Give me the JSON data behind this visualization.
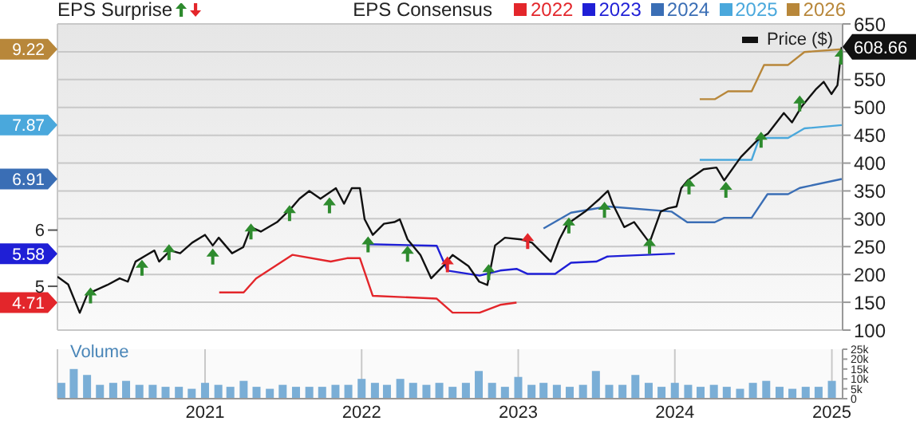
{
  "chart_data": [
    {
      "type": "line",
      "annotations": [
        "EPS Surprise"
      ],
      "legend_title": "EPS Consensus",
      "legend": "top",
      "grid": true,
      "tick_labels": "y",
      "xlim": [
        "2020-01-23",
        "2025-01-26"
      ],
      "xticks": [
        {
          "value": "2021-01-01",
          "label": null
        },
        {
          "value": "2022-01-01",
          "label": null
        },
        {
          "value": "2023-01-01",
          "label": null
        },
        {
          "value": "2024-01-01",
          "label": null
        },
        {
          "value": "2025-01-01",
          "label": null
        }
      ],
      "ylim": [
        4.22,
        9.67
      ],
      "yticks": [
        4.71,
        5,
        5.58,
        6,
        6.91,
        7.87,
        9.22
      ],
      "y2lim": [
        100,
        650
      ],
      "y2ticks": [
        100,
        150,
        200,
        250,
        300,
        350,
        400,
        450,
        500,
        550,
        {
          "value": 600,
          "label": null
        },
        650
      ],
      "series": [
        {
          "name": "2022",
          "color": "#e3262b",
          "x": [
            "2021-02-03",
            "2021-04-01",
            "2021-04-30",
            "2021-07-24",
            "2021-10-21",
            "2021-11-28",
            "2021-12-28",
            "2022-01-27",
            "2022-06-25",
            "2022-08-01",
            "2022-10-03",
            "2022-11-20",
            "2022-12-28"
          ],
          "values": [
            4.89,
            4.89,
            5.14,
            5.56,
            5.44,
            5.5,
            5.5,
            4.83,
            4.78,
            4.53,
            4.53,
            4.67,
            4.71
          ]
        },
        {
          "name": "2023",
          "color": "#1f1fd6",
          "x": [
            "2022-01-16",
            "2022-06-25",
            "2022-07-20",
            "2022-10-03",
            "2022-11-20",
            "2022-12-28",
            "2023-01-23",
            "2023-03-28",
            "2023-05-04",
            "2023-07-02",
            "2023-07-28",
            "2024-01-01"
          ],
          "values": [
            5.75,
            5.72,
            5.28,
            5.19,
            5.28,
            5.31,
            5.22,
            5.22,
            5.42,
            5.44,
            5.53,
            5.58
          ]
        },
        {
          "name": "2024",
          "color": "#3a6eb5",
          "x": [
            "2023-03-01",
            "2023-05-04",
            "2023-07-28",
            "2023-12-24",
            "2024-01-30",
            "2024-04-03",
            "2024-04-25",
            "2024-06-28",
            "2024-08-04",
            "2024-09-21",
            "2024-10-18",
            "2025-01-24"
          ],
          "values": [
            6.03,
            6.31,
            6.42,
            6.33,
            6.14,
            6.14,
            6.22,
            6.22,
            6.64,
            6.64,
            6.75,
            6.91
          ]
        },
        {
          "name": "2025",
          "color": "#4aa8dc",
          "x": [
            "2024-02-28",
            "2024-06-28",
            "2024-07-16",
            "2024-09-21",
            "2024-10-29",
            "2025-01-24"
          ],
          "values": [
            7.25,
            7.25,
            7.64,
            7.64,
            7.81,
            7.87
          ]
        },
        {
          "name": "2026",
          "color": "#b8873a",
          "x": [
            "2024-02-28",
            "2024-04-03",
            "2024-05-04",
            "2024-06-28",
            "2024-07-27",
            "2024-09-21",
            "2024-10-29",
            "2025-01-24"
          ],
          "values": [
            8.33,
            8.33,
            8.47,
            8.47,
            8.94,
            8.94,
            9.17,
            9.22
          ]
        },
        {
          "name": "Price ($)",
          "color": "#111111",
          "axis": "y2",
          "x": [
            "2020-01-23",
            "2020-02-17",
            "2020-03-15",
            "2020-04-02",
            "2020-05-18",
            "2020-06-16",
            "2020-07-05",
            "2020-07-23",
            "2020-08-18",
            "2020-09-05",
            "2020-09-16",
            "2020-10-12",
            "2020-11-04",
            "2020-12-02",
            "2021-01-01",
            "2021-01-19",
            "2021-02-02",
            "2021-03-05",
            "2021-03-31",
            "2021-04-18",
            "2021-05-11",
            "2021-06-18",
            "2021-07-21",
            "2021-08-09",
            "2021-09-01",
            "2021-09-27",
            "2021-11-02",
            "2021-11-21",
            "2021-12-09",
            "2021-12-28",
            "2022-01-08",
            "2022-01-27",
            "2022-02-22",
            "2022-03-18",
            "2022-03-31",
            "2022-04-18",
            "2022-05-18",
            "2022-06-12",
            "2022-07-10",
            "2022-08-01",
            "2022-09-07",
            "2022-10-02",
            "2022-10-21",
            "2022-11-08",
            "2022-12-01",
            "2023-01-07",
            "2023-02-02",
            "2023-03-18",
            "2023-04-07",
            "2023-04-26",
            "2023-06-06",
            "2023-07-10",
            "2023-07-29",
            "2023-08-09",
            "2023-09-05",
            "2023-09-28",
            "2023-11-03",
            "2023-11-29",
            "2023-12-17",
            "2024-01-05",
            "2024-01-16",
            "2024-01-31",
            "2024-03-08",
            "2024-04-07",
            "2024-04-25",
            "2024-06-03",
            "2024-07-10",
            "2024-08-05",
            "2024-08-28",
            "2024-09-11",
            "2024-09-30",
            "2024-10-22",
            "2024-11-24",
            "2024-12-13",
            "2024-12-31",
            "2025-01-14",
            "2025-01-24"
          ],
          "values": [
            196,
            182,
            131,
            165,
            181,
            193,
            187,
            223,
            235,
            243,
            223,
            243,
            238,
            257,
            271,
            252,
            266,
            238,
            249,
            285,
            277,
            294,
            319,
            336,
            350,
            336,
            355,
            327,
            355,
            355,
            299,
            271,
            291,
            294,
            299,
            263,
            235,
            193,
            215,
            235,
            215,
            187,
            181,
            252,
            266,
            263,
            257,
            223,
            263,
            291,
            313,
            336,
            350,
            327,
            285,
            294,
            257,
            313,
            319,
            322,
            355,
            369,
            389,
            392,
            369,
            411,
            440,
            453,
            476,
            490,
            473,
            501,
            532,
            546,
            524,
            540,
            608.66
          ],
          "value_labels": [
            null,
            null,
            null,
            null,
            null,
            null,
            null,
            null,
            null,
            null,
            null,
            null,
            null,
            null,
            null,
            null,
            null,
            null,
            null,
            null,
            null,
            null,
            null,
            null,
            null,
            null,
            null,
            null,
            null,
            null,
            null,
            null,
            null,
            null,
            null,
            null,
            null,
            null,
            null,
            null,
            null,
            null,
            null,
            null,
            null,
            null,
            null,
            null,
            null,
            null,
            null,
            null,
            null,
            null,
            null,
            null,
            null,
            null,
            null,
            null,
            null,
            null,
            null,
            null,
            null,
            null,
            null,
            null,
            null,
            null,
            null,
            null,
            null,
            null,
            null,
            null,
            "608.66"
          ]
        },
        {
          "type": "scatter",
          "color": "#2e8b2e",
          "axis": "y2",
          "marker": "triangle",
          "x": [
            "2020-04-09",
            "2020-08-07",
            "2020-10-09",
            "2021-01-19",
            "2021-04-18",
            "2021-07-17",
            "2021-10-18",
            "2022-01-16",
            "2022-04-18",
            "2022-10-24",
            "2023-04-29",
            "2023-07-21",
            "2023-11-03",
            "2024-02-03",
            "2024-04-29",
            "2024-07-20",
            "2024-10-18",
            "2025-01-22"
          ],
          "values": [
            165,
            215,
            243,
            235,
            280,
            313,
            327,
            257,
            240,
            207,
            291,
            319,
            254,
            361,
            355,
            445,
            510,
            594
          ]
        },
        {
          "type": "scatter",
          "color": "#e3262b",
          "axis": "y2",
          "marker": "triangle",
          "x": [
            "2022-07-20",
            "2023-01-23"
          ],
          "values": [
            221,
            263
          ]
        }
      ]
    },
    {
      "type": "bar",
      "ylabel": "Volume",
      "grid": "x",
      "color": "#7aaed6",
      "xlim": [
        "2020-01-23",
        "2025-01-26"
      ],
      "xticks": [
        {
          "value": "2021-01-01",
          "label": "2021"
        },
        {
          "value": "2022-01-01",
          "label": "2022"
        },
        {
          "value": "2023-01-01",
          "label": "2023"
        },
        {
          "value": "2024-01-01",
          "label": "2024"
        },
        {
          "value": "2025-01-01",
          "label": "2025"
        }
      ],
      "ylim": [
        0,
        25000
      ],
      "yticks": [
        0,
        {
          "value": 5000,
          "label": "5k"
        },
        {
          "value": 10000,
          "label": "10k"
        },
        {
          "value": 15000,
          "label": "15k"
        },
        {
          "value": 20000,
          "label": "20k"
        },
        {
          "value": 25000,
          "label": "25k"
        }
      ],
      "x": [
        "2020-02",
        "2020-03",
        "2020-04",
        "2020-05",
        "2020-06",
        "2020-07",
        "2020-08",
        "2020-09",
        "2020-10",
        "2020-11",
        "2020-12",
        "2021-01",
        "2021-02",
        "2021-03",
        "2021-04",
        "2021-05",
        "2021-06",
        "2021-07",
        "2021-08",
        "2021-09",
        "2021-10",
        "2021-11",
        "2021-12",
        "2022-01",
        "2022-02",
        "2022-03",
        "2022-04",
        "2022-05",
        "2022-06",
        "2022-07",
        "2022-08",
        "2022-09",
        "2022-10",
        "2022-11",
        "2022-12",
        "2023-01",
        "2023-02",
        "2023-03",
        "2023-04",
        "2023-05",
        "2023-06",
        "2023-07",
        "2023-08",
        "2023-09",
        "2023-10",
        "2023-11",
        "2023-12",
        "2024-01",
        "2024-02",
        "2024-03",
        "2024-04",
        "2024-05",
        "2024-06",
        "2024-07",
        "2024-08",
        "2024-09",
        "2024-10",
        "2024-11",
        "2024-12",
        "2025-01"
      ],
      "values": [
        8000,
        15000,
        12000,
        7000,
        8000,
        9000,
        7000,
        7000,
        6000,
        6000,
        5000,
        8000,
        7000,
        6000,
        9000,
        6000,
        5000,
        7000,
        6000,
        6000,
        6000,
        7000,
        7000,
        10000,
        8000,
        7000,
        10000,
        8000,
        7000,
        8000,
        6000,
        8000,
        14000,
        8000,
        6000,
        11000,
        7000,
        8000,
        7000,
        6000,
        7000,
        14000,
        7000,
        7000,
        12000,
        8000,
        6000,
        8000,
        7000,
        6000,
        7000,
        6000,
        5000,
        8000,
        9000,
        6000,
        5000,
        6000,
        6000,
        9000
      ]
    }
  ]
}
